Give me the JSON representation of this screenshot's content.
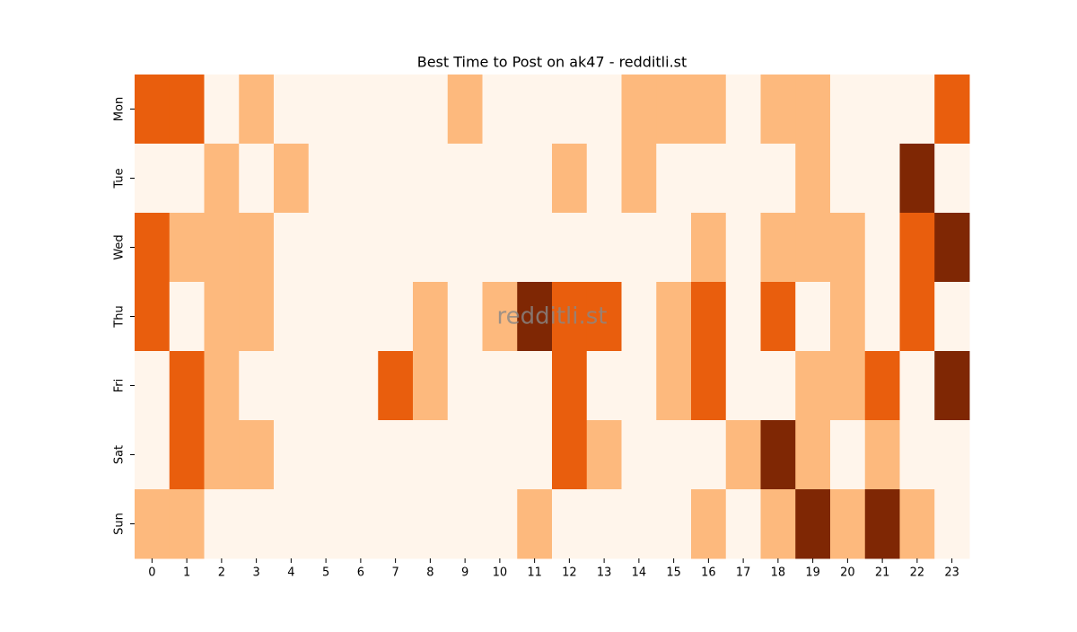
{
  "chart_data": {
    "type": "heatmap",
    "title": "Best Time to Post on ak47 - redditli.st",
    "watermark": "redditli.st",
    "x": [
      0,
      1,
      2,
      3,
      4,
      5,
      6,
      7,
      8,
      9,
      10,
      11,
      12,
      13,
      14,
      15,
      16,
      17,
      18,
      19,
      20,
      21,
      22,
      23
    ],
    "y": [
      "Mon",
      "Tue",
      "Wed",
      "Thu",
      "Fri",
      "Sat",
      "Sun"
    ],
    "values": [
      [
        2,
        2,
        0,
        1,
        0,
        0,
        0,
        0,
        0,
        1,
        0,
        0,
        0,
        0,
        1,
        1,
        1,
        0,
        1,
        1,
        0,
        0,
        0,
        2
      ],
      [
        0,
        0,
        1,
        0,
        1,
        0,
        0,
        0,
        0,
        0,
        0,
        0,
        1,
        0,
        1,
        0,
        0,
        0,
        0,
        1,
        0,
        0,
        3,
        0
      ],
      [
        2,
        1,
        1,
        1,
        0,
        0,
        0,
        0,
        0,
        0,
        0,
        0,
        0,
        0,
        0,
        0,
        1,
        0,
        1,
        1,
        1,
        0,
        2,
        3
      ],
      [
        2,
        0,
        1,
        1,
        0,
        0,
        0,
        0,
        1,
        0,
        1,
        3,
        2,
        2,
        0,
        1,
        2,
        0,
        2,
        0,
        1,
        0,
        2,
        0
      ],
      [
        0,
        2,
        1,
        0,
        0,
        0,
        0,
        2,
        1,
        0,
        0,
        0,
        2,
        0,
        0,
        1,
        2,
        0,
        0,
        1,
        1,
        2,
        0,
        3
      ],
      [
        0,
        2,
        1,
        1,
        0,
        0,
        0,
        0,
        0,
        0,
        0,
        0,
        2,
        1,
        0,
        0,
        0,
        1,
        3,
        1,
        0,
        1,
        0,
        0
      ],
      [
        1,
        1,
        0,
        0,
        0,
        0,
        0,
        0,
        0,
        0,
        0,
        1,
        0,
        0,
        0,
        0,
        1,
        0,
        1,
        3,
        1,
        3,
        1,
        0
      ]
    ],
    "vlim": [
      0,
      3
    ],
    "colorscale": [
      "#fff5eb",
      "#fdb97d",
      "#e95e0d",
      "#7f2704"
    ]
  }
}
